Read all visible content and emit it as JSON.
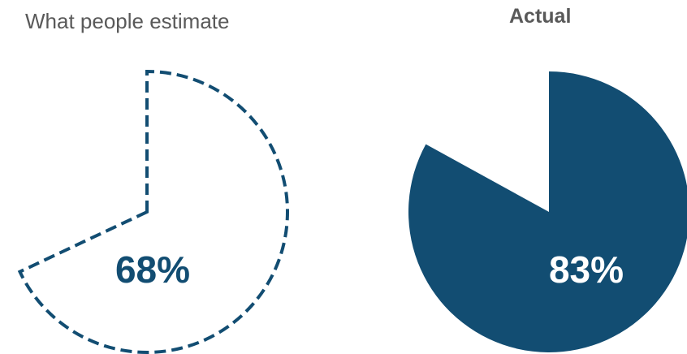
{
  "colors": {
    "accent": "#124d72",
    "title_text": "#595959",
    "actual_label": "#ffffff"
  },
  "chart_data": [
    {
      "type": "pie",
      "title": "What people estimate",
      "value": 68,
      "label": "68%",
      "style": "dashed-outline"
    },
    {
      "type": "pie",
      "title": "Actual",
      "value": 83,
      "label": "83%",
      "style": "filled"
    }
  ]
}
